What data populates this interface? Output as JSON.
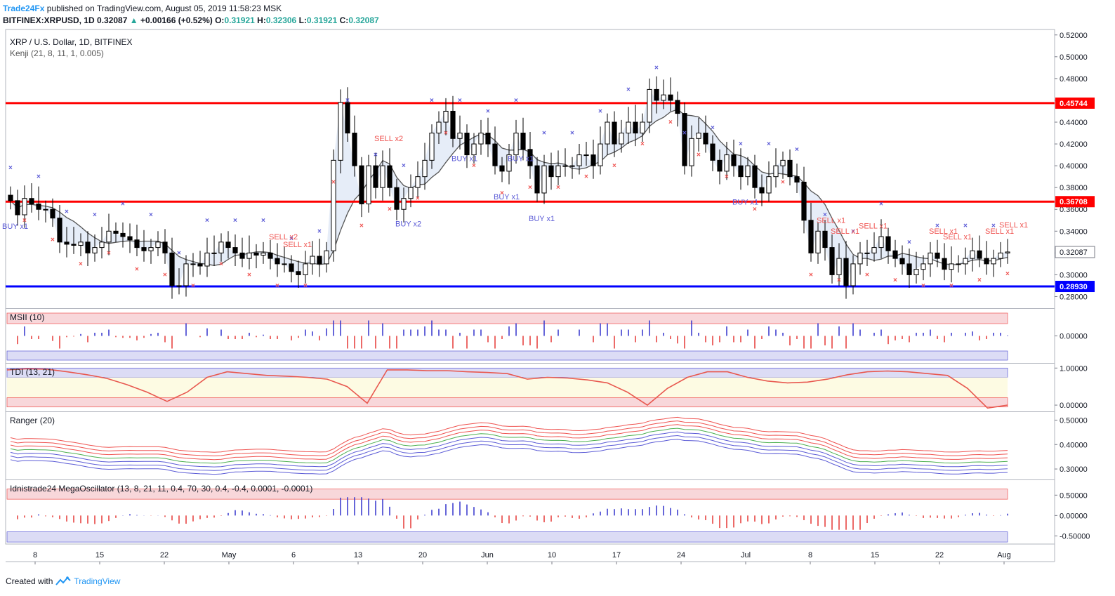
{
  "header": {
    "publisher": "Trade24Fx",
    "published_text": "published on TradingView.com, August 05, 2019 11:58:23 MSK",
    "symbol": "BITFINEX:XRPUSD, 1D",
    "last": "0.32087",
    "change": "+0.00166 (+0.52%)",
    "o_label": "O:",
    "o": "0.31921",
    "h_label": "H:",
    "h": "0.32306",
    "l_label": "L:",
    "l": "0.31921",
    "c_label": "C:",
    "c": "0.32087"
  },
  "footer": {
    "created_with": "Created with",
    "brand": "TradingView"
  },
  "colors": {
    "up_candle": "#ffffff",
    "down_candle": "#000000",
    "resistance": "#ff0000",
    "support": "#0000ff",
    "buy_marker": "#5b5bd6",
    "sell_marker": "#ef5350",
    "kenji_line": "#555555"
  },
  "chart_data": [
    {
      "type": "candlestick",
      "title": "XRP / U.S. Dollar, 1D, BITFINEX",
      "indicator_label": "Kenji (21, 8, 11, 1, 0.005)",
      "ylim": [
        0.27,
        0.525
      ],
      "y_ticks": [
        "0.52000",
        "0.50000",
        "0.48000",
        "0.46000",
        "0.44000",
        "0.42000",
        "0.40000",
        "0.38000",
        "0.36000",
        "0.34000",
        "0.32000",
        "0.30000",
        "0.28000"
      ],
      "x_ticks": [
        "8",
        "15",
        "22",
        "May",
        "6",
        "13",
        "20",
        "Jun",
        "10",
        "17",
        "24",
        "Jul",
        "8",
        "15",
        "22",
        "Aug"
      ],
      "levels": [
        {
          "value": 0.45744,
          "label": "0.45744",
          "color": "#ff0000"
        },
        {
          "value": 0.36708,
          "label": "0.36708",
          "color": "#ff0000"
        },
        {
          "value": 0.2893,
          "label": "0.28930",
          "color": "#0000ff"
        }
      ],
      "last_price": {
        "value": 0.32087,
        "label": "0.32087"
      },
      "close": [
        0.368,
        0.355,
        0.37,
        0.365,
        0.36,
        0.36,
        0.352,
        0.33,
        0.328,
        0.327,
        0.33,
        0.32,
        0.325,
        0.33,
        0.34,
        0.338,
        0.335,
        0.332,
        0.325,
        0.322,
        0.325,
        0.33,
        0.32,
        0.29,
        0.29,
        0.31,
        0.31,
        0.308,
        0.32,
        0.32,
        0.33,
        0.325,
        0.32,
        0.315,
        0.32,
        0.318,
        0.32,
        0.315,
        0.31,
        0.31,
        0.303,
        0.3,
        0.31,
        0.317,
        0.31,
        0.322,
        0.405,
        0.458,
        0.43,
        0.4,
        0.365,
        0.4,
        0.38,
        0.4,
        0.38,
        0.36,
        0.37,
        0.38,
        0.39,
        0.405,
        0.43,
        0.44,
        0.45,
        0.425,
        0.43,
        0.41,
        0.42,
        0.43,
        0.42,
        0.4,
        0.395,
        0.41,
        0.43,
        0.415,
        0.4,
        0.375,
        0.4,
        0.39,
        0.4,
        0.4,
        0.4,
        0.41,
        0.41,
        0.4,
        0.42,
        0.44,
        0.42,
        0.43,
        0.44,
        0.43,
        0.44,
        0.47,
        0.46,
        0.465,
        0.46,
        0.448,
        0.4,
        0.425,
        0.43,
        0.42,
        0.405,
        0.395,
        0.41,
        0.4,
        0.39,
        0.4,
        0.38,
        0.375,
        0.39,
        0.4,
        0.405,
        0.39,
        0.385,
        0.35,
        0.32,
        0.34,
        0.325,
        0.3,
        0.315,
        0.29,
        0.31,
        0.32,
        0.32,
        0.325,
        0.335,
        0.322,
        0.315,
        0.31,
        0.3,
        0.305,
        0.31,
        0.32,
        0.315,
        0.305,
        0.31,
        0.31,
        0.315,
        0.322,
        0.315,
        0.31,
        0.315,
        0.32,
        0.3209
      ],
      "trade_labels": [
        "BUY x1",
        "SELL x2",
        "SELL x1",
        "SELL x2",
        "BUY x2",
        "BUY x1",
        "BUY x1",
        "BUY x1",
        "BUY x1",
        "BUY x1",
        "SELL x1",
        "SELL x1",
        "SELL x1",
        "SELL x1",
        "SELL x1",
        "SELL x1",
        "SELL x1"
      ]
    },
    {
      "type": "histogram",
      "title": "MSII (10)",
      "y_ticks": [
        "0.00000"
      ],
      "ylim": [
        -1.3,
        1.3
      ]
    },
    {
      "type": "line",
      "title": "TDI (13, 21)",
      "y_ticks": [
        "1.00000",
        "0.00000"
      ],
      "ylim": [
        -0.15,
        1.1
      ],
      "values": [
        0.95,
        0.98,
        0.97,
        0.9,
        0.82,
        0.72,
        0.55,
        0.35,
        0.1,
        0.35,
        0.75,
        0.9,
        0.85,
        0.8,
        0.78,
        0.75,
        0.7,
        0.5,
        0.05,
        0.95,
        0.95,
        0.93,
        0.93,
        0.9,
        0.88,
        0.85,
        0.7,
        0.75,
        0.73,
        0.68,
        0.6,
        0.35,
        0.0,
        0.45,
        0.75,
        0.9,
        0.9,
        0.75,
        0.65,
        0.6,
        0.62,
        0.7,
        0.82,
        0.9,
        0.92,
        0.9,
        0.85,
        0.8,
        0.45,
        -0.08,
        0.0
      ]
    },
    {
      "type": "line",
      "title": "Ranger (20)",
      "y_ticks": [
        "0.50000",
        "0.40000",
        "0.30000"
      ],
      "ylim": [
        0.26,
        0.53
      ]
    },
    {
      "type": "histogram",
      "title": "Idnistrade24 MegaOscillator (13, 8, 21, 11, 0.4, 70, 30, 0.4, -0.4, 0.0001, -0.0001)",
      "y_ticks": [
        "0.50000",
        "0.00000",
        "-0.50000"
      ],
      "ylim": [
        -0.7,
        0.85
      ]
    }
  ]
}
